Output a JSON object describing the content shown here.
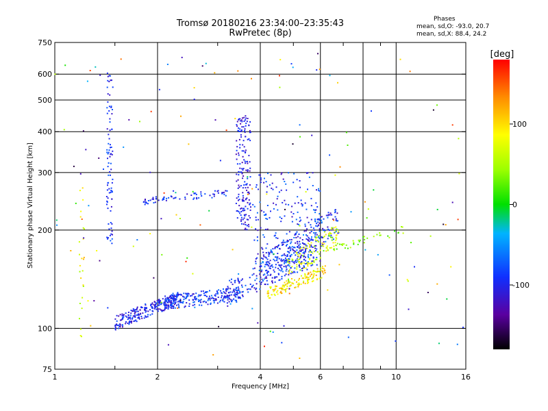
{
  "title_line1": "Tromsø 20180216 23:34:00–23:35:43",
  "title_line2": "RwPretec (8p)",
  "phase_box": {
    "heading": "Phases",
    "line_o": "mean, sd,O: -93.0, 20.7",
    "line_x": "mean, sd,X:  88.4, 24.2"
  },
  "chart_data": {
    "type": "scatter",
    "xlabel": "Frequency [MHz]",
    "ylabel": "Stationary phase Virtual Height [km]",
    "xscale": "log",
    "yscale": "log",
    "xlim": [
      1,
      16
    ],
    "ylim": [
      75,
      750
    ],
    "x_ticks": [
      1,
      2,
      4,
      6,
      8,
      10,
      16
    ],
    "x_minor_ticks": [
      1.5,
      3,
      5,
      7,
      9
    ],
    "x_grid": [
      2,
      4,
      6,
      8,
      10
    ],
    "y_ticks": [
      75,
      100,
      200,
      300,
      400,
      500,
      600,
      750
    ],
    "y_grid": [
      100,
      200,
      300,
      400,
      500,
      600
    ],
    "colorbar": {
      "label": "[deg]",
      "range": [
        -180,
        180
      ],
      "ticks": [
        100,
        0,
        -100
      ]
    },
    "grid": true
  }
}
